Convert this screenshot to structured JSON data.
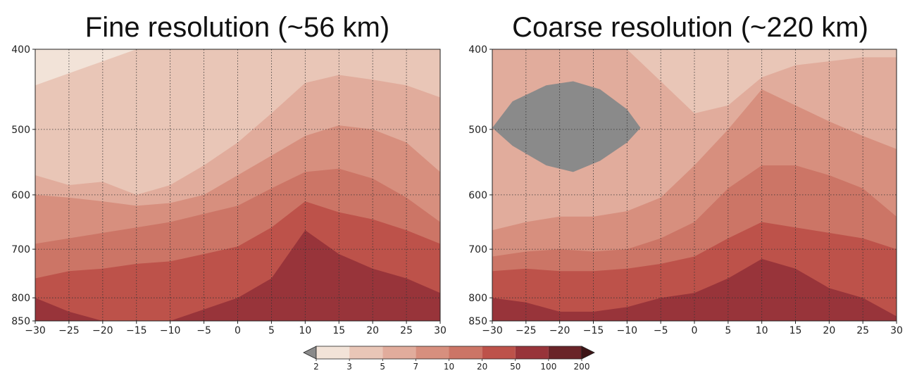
{
  "colors": {
    "levels": [
      "#f2e3d8",
      "#e9c6b7",
      "#e1ac9c",
      "#d78f7e",
      "#cc7566",
      "#bd524a",
      "#98343a",
      "#6a2428"
    ],
    "under": "#8a8a8a"
  },
  "chart_data": [
    {
      "type": "contour",
      "title": "Fine resolution (~56 km)",
      "x_ticks": [
        "−30",
        "−25",
        "−20",
        "−15",
        "−10",
        "−5",
        "0",
        "5",
        "10",
        "15",
        "20",
        "25",
        "30"
      ],
      "y_ticks": [
        "400",
        "500",
        "600",
        "700",
        "800",
        "850"
      ],
      "xlim": [
        -30,
        30
      ],
      "ylim": [
        850,
        400
      ],
      "y_tick_values": [
        400,
        500,
        600,
        700,
        800,
        850
      ],
      "grid": true,
      "boundaries": [
        [
          [
            -30,
            445
          ],
          [
            -25,
            430
          ],
          [
            -20,
            415
          ],
          [
            -15,
            400
          ],
          [
            -10,
            400
          ],
          [
            -5,
            400
          ],
          [
            0,
            400
          ],
          [
            5,
            400
          ],
          [
            10,
            400
          ],
          [
            15,
            400
          ],
          [
            20,
            400
          ],
          [
            25,
            400
          ],
          [
            30,
            400
          ]
        ],
        [
          [
            -30,
            570
          ],
          [
            -25,
            585
          ],
          [
            -20,
            580
          ],
          [
            -15,
            600
          ],
          [
            -10,
            585
          ],
          [
            -5,
            555
          ],
          [
            0,
            520
          ],
          [
            5,
            480
          ],
          [
            10,
            442
          ],
          [
            15,
            432
          ],
          [
            20,
            438
          ],
          [
            25,
            445
          ],
          [
            30,
            460
          ]
        ],
        [
          [
            -30,
            600
          ],
          [
            -25,
            605
          ],
          [
            -20,
            612
          ],
          [
            -15,
            620
          ],
          [
            -10,
            615
          ],
          [
            -5,
            600
          ],
          [
            0,
            570
          ],
          [
            5,
            540
          ],
          [
            10,
            510
          ],
          [
            15,
            495
          ],
          [
            20,
            500
          ],
          [
            25,
            520
          ],
          [
            30,
            565
          ]
        ],
        [
          [
            -30,
            690
          ],
          [
            -25,
            680
          ],
          [
            -20,
            670
          ],
          [
            -15,
            660
          ],
          [
            -10,
            650
          ],
          [
            -5,
            635
          ],
          [
            0,
            620
          ],
          [
            5,
            590
          ],
          [
            10,
            565
          ],
          [
            15,
            560
          ],
          [
            20,
            575
          ],
          [
            25,
            605
          ],
          [
            30,
            650
          ]
        ],
        [
          [
            -30,
            760
          ],
          [
            -25,
            745
          ],
          [
            -20,
            740
          ],
          [
            -15,
            730
          ],
          [
            -10,
            725
          ],
          [
            -5,
            710
          ],
          [
            0,
            695
          ],
          [
            5,
            660
          ],
          [
            10,
            612
          ],
          [
            15,
            632
          ],
          [
            20,
            645
          ],
          [
            25,
            665
          ],
          [
            30,
            690
          ]
        ],
        [
          [
            -30,
            800
          ],
          [
            -25,
            830
          ],
          [
            -20,
            850
          ],
          [
            -15,
            850
          ],
          [
            -10,
            850
          ],
          [
            -5,
            825
          ],
          [
            0,
            800
          ],
          [
            5,
            760
          ],
          [
            10,
            665
          ],
          [
            15,
            710
          ],
          [
            20,
            740
          ],
          [
            25,
            760
          ],
          [
            30,
            790
          ]
        ]
      ]
    },
    {
      "type": "contour",
      "title": "Coarse resolution (~220 km)",
      "x_ticks": [
        "−30",
        "−25",
        "−20",
        "−15",
        "−10",
        "−5",
        "0",
        "5",
        "10",
        "15",
        "20",
        "25",
        "30"
      ],
      "y_ticks": [
        "400",
        "500",
        "600",
        "700",
        "800",
        "850"
      ],
      "xlim": [
        -30,
        30
      ],
      "ylim": [
        850,
        400
      ],
      "y_tick_values": [
        400,
        500,
        600,
        700,
        800,
        850
      ],
      "grid": true,
      "boundaries": [
        [
          [
            -30,
            400
          ],
          [
            -25,
            400
          ],
          [
            -20,
            400
          ],
          [
            -15,
            400
          ],
          [
            -10,
            400
          ],
          [
            -5,
            400
          ],
          [
            0,
            400
          ],
          [
            5,
            400
          ],
          [
            10,
            400
          ],
          [
            15,
            400
          ],
          [
            20,
            400
          ],
          [
            25,
            400
          ],
          [
            30,
            400
          ]
        ],
        [
          [
            -30,
            400
          ],
          [
            -25,
            400
          ],
          [
            -20,
            400
          ],
          [
            -15,
            400
          ],
          [
            -10,
            400
          ],
          [
            -5,
            440
          ],
          [
            0,
            480
          ],
          [
            5,
            470
          ],
          [
            10,
            435
          ],
          [
            15,
            420
          ],
          [
            20,
            415
          ],
          [
            25,
            410
          ],
          [
            30,
            410
          ]
        ],
        [
          [
            -30,
            665
          ],
          [
            -25,
            650
          ],
          [
            -20,
            640
          ],
          [
            -15,
            640
          ],
          [
            -10,
            630
          ],
          [
            -5,
            605
          ],
          [
            0,
            555
          ],
          [
            5,
            500
          ],
          [
            10,
            450
          ],
          [
            15,
            470
          ],
          [
            20,
            490
          ],
          [
            25,
            510
          ],
          [
            30,
            530
          ]
        ],
        [
          [
            -30,
            715
          ],
          [
            -25,
            705
          ],
          [
            -20,
            700
          ],
          [
            -15,
            705
          ],
          [
            -10,
            700
          ],
          [
            -5,
            680
          ],
          [
            0,
            650
          ],
          [
            5,
            590
          ],
          [
            10,
            555
          ],
          [
            15,
            555
          ],
          [
            20,
            570
          ],
          [
            25,
            590
          ],
          [
            30,
            640
          ]
        ],
        [
          [
            -30,
            745
          ],
          [
            -25,
            740
          ],
          [
            -20,
            745
          ],
          [
            -15,
            745
          ],
          [
            -10,
            740
          ],
          [
            -5,
            730
          ],
          [
            0,
            715
          ],
          [
            5,
            680
          ],
          [
            10,
            650
          ],
          [
            15,
            660
          ],
          [
            20,
            670
          ],
          [
            25,
            680
          ],
          [
            30,
            700
          ]
        ],
        [
          [
            -30,
            800
          ],
          [
            -25,
            810
          ],
          [
            -20,
            830
          ],
          [
            -15,
            830
          ],
          [
            -10,
            820
          ],
          [
            -5,
            800
          ],
          [
            0,
            790
          ],
          [
            5,
            760
          ],
          [
            10,
            720
          ],
          [
            15,
            740
          ],
          [
            20,
            780
          ],
          [
            25,
            800
          ],
          [
            30,
            840
          ]
        ]
      ],
      "below_min_region": [
        [
          -30,
          498
        ],
        [
          -27,
          465
        ],
        [
          -22,
          445
        ],
        [
          -18,
          440
        ],
        [
          -14,
          450
        ],
        [
          -10,
          475
        ],
        [
          -8,
          498
        ],
        [
          -10,
          520
        ],
        [
          -14,
          548
        ],
        [
          -18,
          565
        ],
        [
          -22,
          555
        ],
        [
          -27,
          525
        ]
      ]
    }
  ],
  "colorbar": {
    "ticks": [
      "2",
      "3",
      "5",
      "7",
      "10",
      "20",
      "50",
      "100",
      "200"
    ],
    "extend": "both"
  }
}
